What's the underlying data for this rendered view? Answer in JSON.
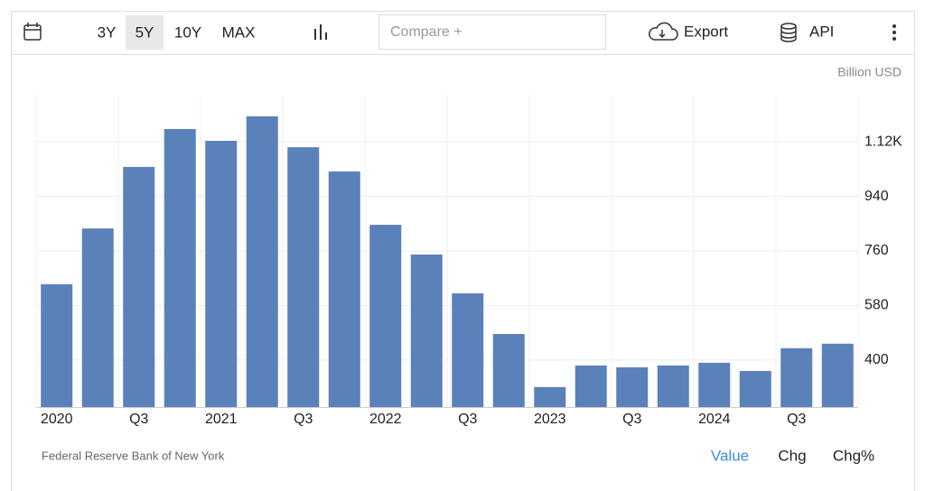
{
  "toolbar": {
    "ranges": [
      "3Y",
      "5Y",
      "10Y",
      "MAX"
    ],
    "selected": "5Y",
    "compare_placeholder": "Compare +",
    "export": "Export",
    "api": "API"
  },
  "chart_data": {
    "type": "bar",
    "unit": "Billion USD",
    "color": "#5a81b9",
    "categories": [
      "2020",
      null,
      "Q3",
      null,
      "2021",
      null,
      "Q3",
      null,
      "2022",
      null,
      "Q3",
      null,
      "2023",
      null,
      "Q3",
      null,
      "2024",
      null,
      "Q3",
      null
    ],
    "values": [
      650,
      834,
      1037,
      1162,
      1123,
      1204,
      1102,
      1022,
      846,
      748,
      620,
      486,
      311,
      382,
      376,
      382,
      391,
      364,
      439,
      454
    ],
    "ylim": [
      245,
      1275
    ],
    "yticks": [
      400,
      580,
      760,
      940,
      {
        "value": 1120,
        "label": "1.12K"
      }
    ],
    "grid": true
  },
  "footer": {
    "source": "Federal Reserve Bank of New York",
    "views": [
      "Value",
      "Chg",
      "Chg%"
    ],
    "selected": "Value"
  }
}
